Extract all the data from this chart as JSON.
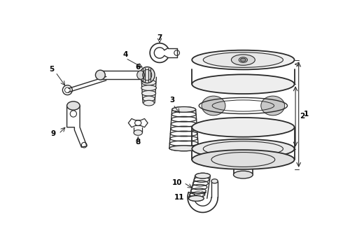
{
  "background_color": "#ffffff",
  "line_color": "#2a2a2a",
  "label_color": "#000000",
  "figsize": [
    4.9,
    3.6
  ],
  "dpi": 100
}
